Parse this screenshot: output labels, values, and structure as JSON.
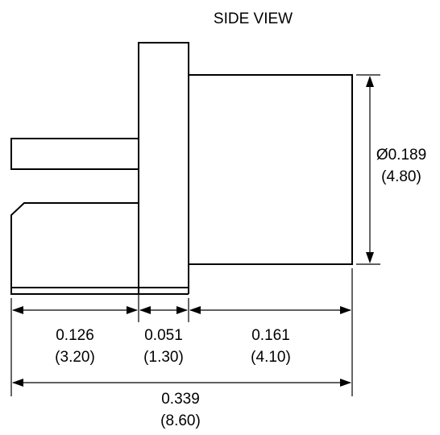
{
  "title": "SIDE VIEW",
  "dimensions": {
    "diameter": {
      "imperial": "Ø0.189",
      "metric": "(4.80)"
    },
    "pin_length": {
      "imperial": "0.126",
      "metric": "(3.20)"
    },
    "flange_thickness": {
      "imperial": "0.051",
      "metric": "(1.30)"
    },
    "body_length": {
      "imperial": "0.161",
      "metric": "(4.10)"
    },
    "overall_length": {
      "imperial": "0.339",
      "metric": "(8.60)"
    }
  },
  "colors": {
    "line": "#000000",
    "background": "#ffffff"
  }
}
